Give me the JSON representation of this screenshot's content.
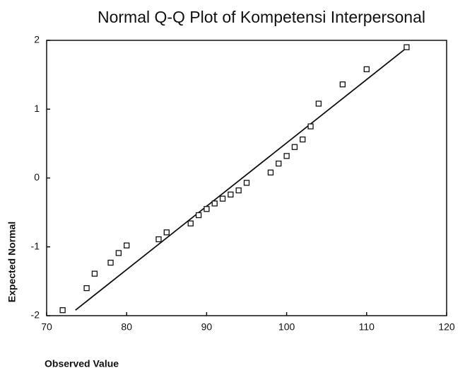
{
  "chart_data": {
    "type": "scatter",
    "title": "Normal Q-Q Plot of Kompetensi Interpersonal",
    "x_label": "Observed Value",
    "y_label": "Expected Normal",
    "points": {
      "x": [
        72,
        75,
        76,
        78,
        79,
        80,
        84,
        85,
        88,
        89,
        90,
        91,
        92,
        93,
        94,
        95,
        98,
        99,
        100,
        101,
        102,
        103,
        104,
        107,
        110,
        115
      ],
      "y": [
        -1.92,
        -1.6,
        -1.39,
        -1.23,
        -1.09,
        -0.98,
        -0.89,
        -0.79,
        -0.66,
        -0.54,
        -0.45,
        -0.37,
        -0.3,
        -0.24,
        -0.18,
        -0.07,
        0.08,
        0.21,
        0.32,
        0.45,
        0.56,
        0.75,
        1.08,
        1.36,
        1.58,
        1.9
      ],
      "color": "#111111"
    },
    "reference_line": {
      "x": [
        73.6,
        115.1
      ],
      "y": [
        -1.92,
        1.9
      ],
      "color": "#111111"
    },
    "xlim": [
      70,
      120
    ],
    "xticks": [
      70,
      80,
      90,
      100,
      110,
      120
    ],
    "ylim": [
      -2,
      2
    ],
    "yticks": [
      -2,
      -1,
      0,
      1,
      2
    ]
  }
}
